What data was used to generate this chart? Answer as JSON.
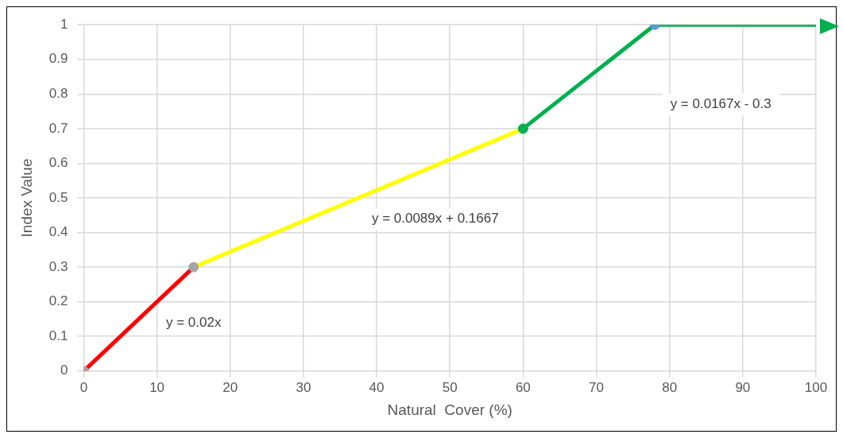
{
  "chart_data": {
    "type": "line",
    "xlabel": "Natural  Cover (%)",
    "ylabel": "Index Value",
    "xlim": [
      0,
      100
    ],
    "xticks": [
      0,
      10,
      20,
      30,
      40,
      50,
      60,
      70,
      80,
      90,
      100
    ],
    "ylim": [
      0,
      1
    ],
    "yticks": [
      0,
      0.1,
      0.2,
      0.3,
      0.4,
      0.5,
      0.6,
      0.7,
      0.8,
      0.9,
      1
    ],
    "grid": true,
    "legend": false,
    "marker": "none",
    "line_style": "solid",
    "series": [
      {
        "x": [
          0,
          15
        ],
        "values": [
          0,
          0.3
        ],
        "color": "#ff0000"
      },
      {
        "x": [
          15,
          60
        ],
        "values": [
          0.3,
          0.7
        ],
        "color": "#ffff00"
      },
      {
        "x": [
          60,
          78,
          100
        ],
        "values": [
          0.7,
          1,
          1
        ],
        "color": "#00b050"
      },
      {
        "type": "scatter",
        "marker": "circle",
        "x": [
          0,
          15,
          60,
          78
        ],
        "values": [
          0,
          0.3,
          0.7,
          1
        ],
        "colors": [
          "#a6a6a6",
          "#a6a6a6",
          "#00b050",
          "#5b9bd5"
        ]
      }
    ],
    "annotations": [
      "y = 0.02x",
      "y = 0.0089x + 0.1667",
      "y = 0.0167x - 0.3"
    ]
  }
}
